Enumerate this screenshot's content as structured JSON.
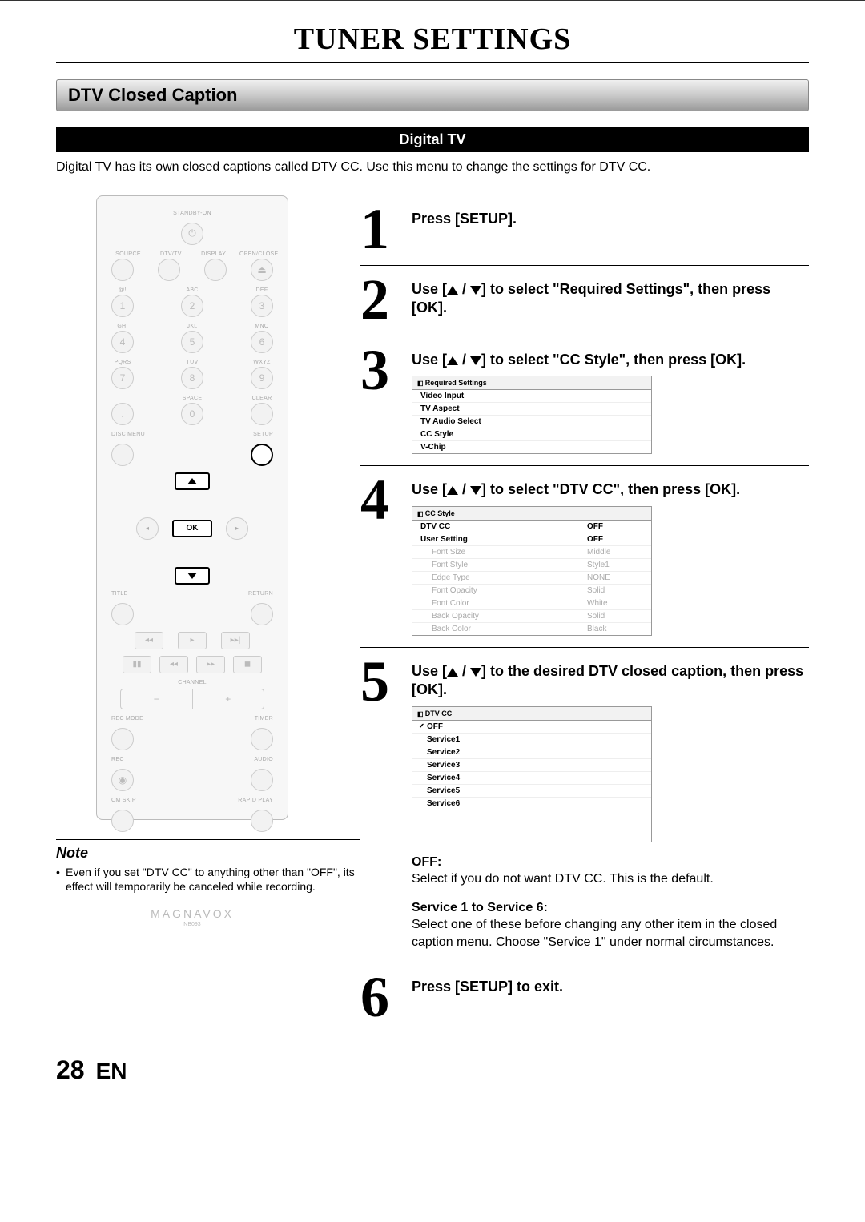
{
  "header_title": "TUNER SETTINGS",
  "section_title": "DTV Closed Caption",
  "black_bar": "Digital TV",
  "intro": "Digital TV has its own closed captions called DTV CC. Use this menu to change the settings for DTV CC.",
  "remote": {
    "standby": "STANDBY-ON",
    "r1_labels": [
      "SOURCE",
      "DTV/TV",
      "DISPLAY",
      "OPEN/CLOSE"
    ],
    "numpad_labels": [
      "@!",
      "ABC",
      "DEF",
      "GHI",
      "JKL",
      "MNO",
      "PQRS",
      "TUV",
      "WXYZ",
      "",
      "SPACE",
      "CLEAR"
    ],
    "numpad_digits": [
      "1",
      "2",
      "3",
      "4",
      "5",
      "6",
      "7",
      "8",
      "9",
      ".",
      "0",
      ""
    ],
    "disc_menu": "DISC MENU",
    "setup": "SETUP",
    "ok": "OK",
    "title": "TITLE",
    "return": "RETURN",
    "channel": "CHANNEL",
    "rec_mode": "REC MODE",
    "timer": "TIMER",
    "rec": "REC",
    "audio": "AUDIO",
    "cm_skip": "CM SKIP",
    "rapid_play": "RAPID PLAY",
    "brand": "MAGNAVOX",
    "model": "NB093"
  },
  "steps": {
    "s1": {
      "num": "1",
      "text": "Press [SETUP]."
    },
    "s2": {
      "num": "2",
      "pre": "Use [",
      "mid": " / ",
      "post": "] to select \"Required Settings\", then press [OK]."
    },
    "s3": {
      "num": "3",
      "pre": "Use [",
      "mid": " / ",
      "post": "] to select \"CC Style\", then press [OK].",
      "menu_title": "Required Settings",
      "items": [
        "Video Input",
        "TV Aspect",
        "TV Audio Select",
        "CC Style",
        "V-Chip"
      ]
    },
    "s4": {
      "num": "4",
      "pre": "Use [",
      "mid": " / ",
      "post": "] to select \"DTV CC\", then press [OK].",
      "menu_title": "CC Style",
      "rows": [
        {
          "k": "DTV CC",
          "v": "OFF",
          "bold": true
        },
        {
          "k": "User Setting",
          "v": "OFF",
          "bold": true
        },
        {
          "k": "Font Size",
          "v": "Middle",
          "faded": true,
          "indent": true
        },
        {
          "k": "Font Style",
          "v": "Style1",
          "faded": true,
          "indent": true
        },
        {
          "k": "Edge Type",
          "v": "NONE",
          "faded": true,
          "indent": true
        },
        {
          "k": "Font Opacity",
          "v": "Solid",
          "faded": true,
          "indent": true
        },
        {
          "k": "Font Color",
          "v": "White",
          "faded": true,
          "indent": true
        },
        {
          "k": "Back Opacity",
          "v": "Solid",
          "faded": true,
          "indent": true
        },
        {
          "k": "Back Color",
          "v": "Black",
          "faded": true,
          "indent": true
        }
      ]
    },
    "s5": {
      "num": "5",
      "pre": "Use [",
      "mid": " / ",
      "post": "] to the desired DTV closed caption, then press [OK].",
      "menu_title": "DTV CC",
      "items": [
        "OFF",
        "Service1",
        "Service2",
        "Service3",
        "Service4",
        "Service5",
        "Service6"
      ],
      "off_label": "OFF:",
      "off_text": "Select if you do not want DTV CC. This is the default.",
      "svc_label": "Service 1 to Service 6:",
      "svc_text": "Select one of these before changing any other item in the closed caption menu. Choose \"Service 1\" under normal circumstances."
    },
    "s6": {
      "num": "6",
      "text": "Press [SETUP] to exit."
    }
  },
  "note": {
    "title": "Note",
    "text": "Even if you set \"DTV CC\" to anything other than \"OFF\", its effect will temporarily be canceled while recording."
  },
  "footer": {
    "page": "28",
    "lang": "EN"
  }
}
